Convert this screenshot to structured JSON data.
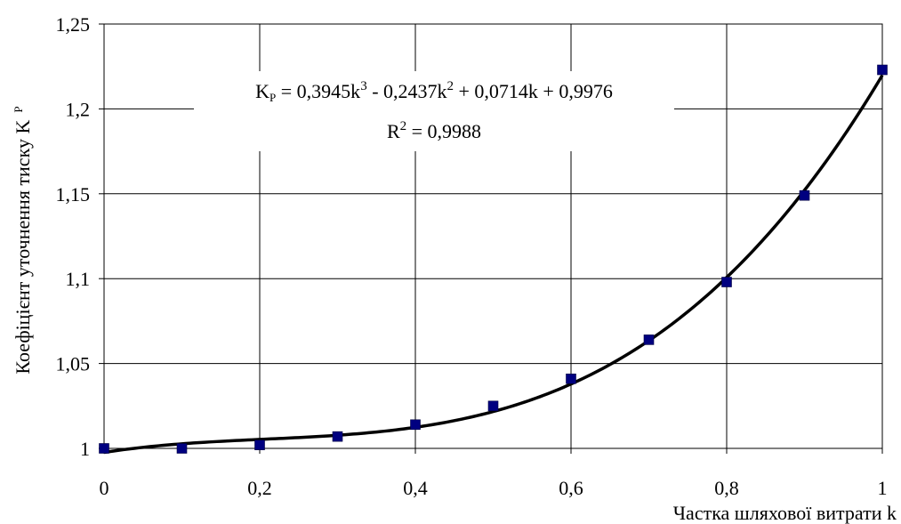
{
  "chart_data": {
    "type": "scatter",
    "xlabel": "Частка шляхової витрати k",
    "ylabel_main": "Коефіцієнт уточнення тиску K",
    "ylabel_sub": "P",
    "xlim": [
      0,
      1
    ],
    "ylim": [
      1,
      1.25
    ],
    "grid": true,
    "x_ticks": [
      "0",
      "0,2",
      "0,4",
      "0,6",
      "0,8",
      "1"
    ],
    "x_tick_values": [
      0,
      0.2,
      0.4,
      0.6,
      0.8,
      1.0
    ],
    "y_ticks": [
      "1",
      "1,05",
      "1,1",
      "1,15",
      "1,2",
      "1,25"
    ],
    "y_tick_values": [
      1.0,
      1.05,
      1.1,
      1.15,
      1.2,
      1.25
    ],
    "series": [
      {
        "marker_color": "#000080",
        "x": [
          0,
          0.1,
          0.2,
          0.3,
          0.4,
          0.5,
          0.6,
          0.7,
          0.8,
          0.9,
          1.0
        ],
        "y": [
          1.0,
          1.0,
          1.002,
          1.007,
          1.014,
          1.025,
          1.041,
          1.064,
          1.098,
          1.149,
          1.223
        ]
      }
    ],
    "trendline": {
      "coefficients": [
        0.3945,
        -0.2437,
        0.0714,
        0.9976
      ],
      "color": "#000000",
      "equation": {
        "k_base": "K",
        "k_sub": "P",
        "part1": " = 0,3945k",
        "sup1": "3",
        "part2": " - 0,2437k",
        "sup2": "2",
        "part3": " + 0,0714k + 0,9976"
      },
      "r2": {
        "base": "R",
        "sup": "2",
        "rest": " = 0,9988"
      }
    }
  }
}
